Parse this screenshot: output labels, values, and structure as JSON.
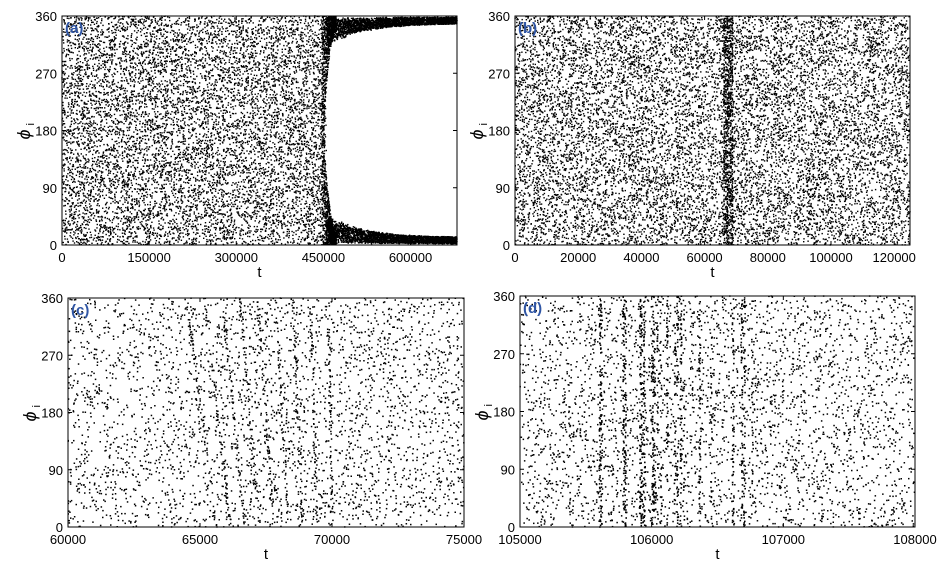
{
  "figure": {
    "description": ""
  },
  "chart_data": [
    {
      "type": "scatter",
      "panel_label": "(a)",
      "xlabel": "t",
      "ylabel": "ϕ",
      "ylabel_sub": "i",
      "xlim": [
        0,
        680000
      ],
      "ylim": [
        0,
        360
      ],
      "xticks": [
        0,
        150000,
        300000,
        450000,
        600000
      ],
      "xtick_labels": [
        "0",
        "150000",
        "300000",
        "450000",
        "600000"
      ],
      "yticks": [
        0,
        90,
        180,
        270,
        360
      ],
      "ytick_labels": [
        "0",
        "90",
        "180",
        "270",
        "360"
      ],
      "grid": false,
      "legend": "none",
      "marker_color": "#000000",
      "label_color": "#2f55a4",
      "series": [
        {
          "pattern": "uniform phases for t < 455000, then phase-locked clusters near 0° and 360°",
          "points": [
            [
              30000,
              210
            ],
            [
              90000,
              45
            ],
            [
              160000,
              310
            ],
            [
              240000,
              120
            ],
            [
              330000,
              260
            ],
            [
              420000,
              75
            ],
            [
              470000,
              352
            ],
            [
              520000,
              12
            ],
            [
              600000,
              348
            ],
            [
              660000,
              8
            ]
          ]
        }
      ]
    },
    {
      "type": "scatter",
      "panel_label": "(b)",
      "xlabel": "t",
      "ylabel": "ϕ",
      "ylabel_sub": "i",
      "xlim": [
        0,
        125000
      ],
      "ylim": [
        0,
        360
      ],
      "xticks": [
        0,
        20000,
        40000,
        60000,
        80000,
        100000,
        120000
      ],
      "xtick_labels": [
        "0",
        "20000",
        "40000",
        "60000",
        "80000",
        "100000",
        "120000"
      ],
      "yticks": [
        0,
        90,
        180,
        270,
        360
      ],
      "ytick_labels": [
        "0",
        "90",
        "180",
        "270",
        "360"
      ],
      "grid": false,
      "legend": "none",
      "marker_color": "#000000",
      "label_color": "#2f55a4",
      "series": [
        {
          "pattern": "uniform phases with vertical striations around t = 66000 to 69000",
          "points": [
            [
              10000,
              200
            ],
            [
              30000,
              60
            ],
            [
              50000,
              300
            ],
            [
              66500,
              150
            ],
            [
              68000,
              220
            ],
            [
              90000,
              100
            ],
            [
              115000,
              330
            ]
          ]
        }
      ]
    },
    {
      "type": "scatter",
      "panel_label": "(c)",
      "xlabel": "t",
      "ylabel": "ϕ",
      "ylabel_sub": "i",
      "xlim": [
        60000,
        75000
      ],
      "ylim": [
        0,
        360
      ],
      "xticks": [
        60000,
        65000,
        70000,
        75000
      ],
      "xtick_labels": [
        "60000",
        "65000",
        "70000",
        "75000"
      ],
      "yticks": [
        0,
        90,
        180,
        270,
        360
      ],
      "ytick_labels": [
        "0",
        "90",
        "180",
        "270",
        "360"
      ],
      "grid": false,
      "legend": "none",
      "marker_color": "#000000",
      "label_color": "#2f55a4",
      "series": [
        {
          "pattern": "sparse uniform phases with slanted streaks between t = 65500 and 70500",
          "points": [
            [
              61000,
              180
            ],
            [
              63000,
              40
            ],
            [
              66000,
              250
            ],
            [
              67500,
              120
            ],
            [
              69000,
              300
            ],
            [
              72000,
              90
            ],
            [
              74000,
              210
            ]
          ]
        }
      ]
    },
    {
      "type": "scatter",
      "panel_label": "(d)",
      "xlabel": "t",
      "ylabel": "ϕ",
      "ylabel_sub": "i",
      "xlim": [
        105000,
        108000
      ],
      "ylim": [
        0,
        360
      ],
      "xticks": [
        105000,
        106000,
        107000,
        108000
      ],
      "xtick_labels": [
        "105000",
        "106000",
        "107000",
        "108000"
      ],
      "yticks": [
        0,
        90,
        180,
        270,
        360
      ],
      "ytick_labels": [
        "0",
        "90",
        "180",
        "270",
        "360"
      ],
      "grid": false,
      "legend": "none",
      "marker_color": "#000000",
      "label_color": "#2f55a4",
      "series": [
        {
          "pattern": "sparse uniform phases with dense vertical streaks between t = 105600 and 106900",
          "points": [
            [
              105200,
              200
            ],
            [
              105700,
              60
            ],
            [
              106100,
              300
            ],
            [
              106450,
              150
            ],
            [
              106700,
              90
            ],
            [
              107300,
              250
            ],
            [
              107800,
              30
            ]
          ]
        }
      ]
    }
  ]
}
